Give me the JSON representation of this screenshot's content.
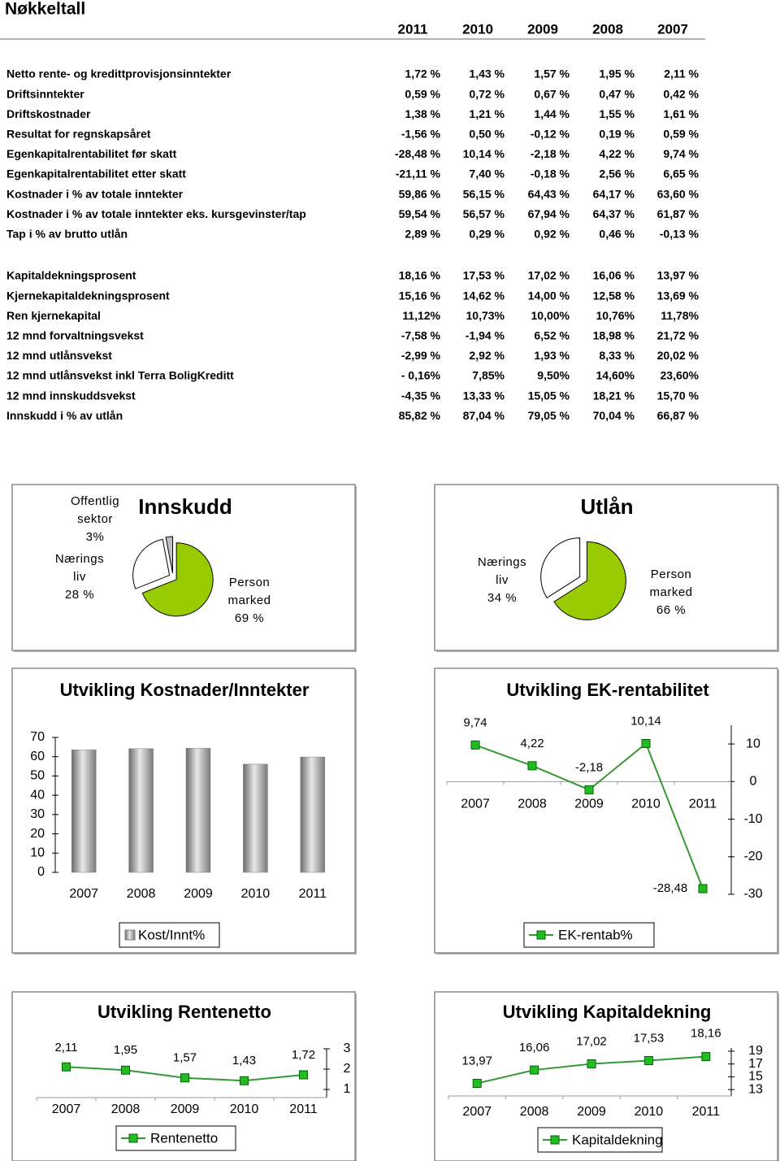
{
  "header": {
    "title": "Nøkkeltall",
    "years": [
      "2011",
      "2010",
      "2009",
      "2008",
      "2007"
    ]
  },
  "table1": {
    "rows": [
      {
        "label": "Netto rente- og kredittprovisjonsinntekter",
        "cells": [
          "1,72 %",
          "1,43 %",
          "1,57 %",
          "1,95 %",
          "2,11 %"
        ]
      },
      {
        "label": "Driftsinntekter",
        "cells": [
          "0,59 %",
          "0,72 %",
          "0,67 %",
          "0,47 %",
          "0,42 %"
        ]
      },
      {
        "label": "Driftskostnader",
        "cells": [
          "1,38 %",
          "1,21 %",
          "1,44 %",
          "1,55 %",
          "1,61 %"
        ]
      },
      {
        "label": "Resultat for regnskapsåret",
        "cells": [
          "-1,56 %",
          "0,50 %",
          "-0,12 %",
          "0,19 %",
          "0,59 %"
        ]
      },
      {
        "label": "Egenkapitalrentabilitet før skatt",
        "cells": [
          "-28,48 %",
          "10,14 %",
          "-2,18 %",
          "4,22 %",
          "9,74 %"
        ]
      },
      {
        "label": "Egenkapitalrentabilitet etter skatt",
        "cells": [
          "-21,11 %",
          "7,40 %",
          "-0,18 %",
          "2,56 %",
          "6,65 %"
        ]
      },
      {
        "label": "Kostnader i % av totale inntekter",
        "cells": [
          "59,86 %",
          "56,15 %",
          "64,43 %",
          "64,17 %",
          "63,60 %"
        ]
      },
      {
        "label": "Kostnader i % av totale inntekter eks. kursgevinster/tap",
        "cells": [
          "59,54 %",
          "56,57 %",
          "67,94 %",
          "64,37 %",
          "61,87 %"
        ]
      },
      {
        "label": "Tap i % av brutto utlån",
        "cells": [
          "2,89 %",
          "0,29 %",
          "0,92 %",
          "0,46 %",
          "-0,13 %"
        ]
      }
    ]
  },
  "table2": {
    "rows": [
      {
        "label": "Kapitaldekningsprosent",
        "cells": [
          "18,16 %",
          "17,53 %",
          "17,02 %",
          "16,06 %",
          "13,97 %"
        ]
      },
      {
        "label": "Kjernekapitaldekningsprosent",
        "cells": [
          "15,16 %",
          "14,62 %",
          "14,00 %",
          "12,58 %",
          "13,69 %"
        ]
      },
      {
        "label": "Ren kjernekapital",
        "cells": [
          "11,12%",
          "10,73%",
          "10,00%",
          "10,76%",
          "11,78%"
        ]
      },
      {
        "label": "12 mnd forvaltningsvekst",
        "cells": [
          "-7,58 %",
          "-1,94 %",
          "6,52 %",
          "18,98 %",
          "21,72 %"
        ]
      },
      {
        "label": "12 mnd utlånsvekst",
        "cells": [
          "-2,99 %",
          "2,92 %",
          "1,93 %",
          "8,33 %",
          "20,02 %"
        ]
      },
      {
        "label": "12 mnd utlånsvekst inkl Terra BoligKreditt",
        "cells": [
          "- 0,16%",
          "7,85%",
          "9,50%",
          "14,60%",
          "23,60%"
        ]
      },
      {
        "label": "12 mnd innskuddsvekst",
        "cells": [
          "-4,35 %",
          "13,33 %",
          "15,05 %",
          "18,21 %",
          "15,70 %"
        ]
      },
      {
        "label": "Innskudd  i % av utlån",
        "cells": [
          "85,82 %",
          "87,04 %",
          "79,05 %",
          "70,04 %",
          "66,87 %"
        ]
      }
    ]
  },
  "chart_data": [
    {
      "type": "pie",
      "title": "Innskudd",
      "categories": [
        "Person marked",
        "Nærings liv",
        "Offentlig sektor"
      ],
      "values": [
        69,
        28,
        3
      ],
      "value_labels": [
        "69 %",
        "28 %",
        "3%"
      ],
      "colors": [
        "#99cc00",
        "#ffffff",
        "#c0c0c0"
      ]
    },
    {
      "type": "pie",
      "title": "Utlån",
      "categories": [
        "Person marked",
        "Nærings liv"
      ],
      "values": [
        66,
        34
      ],
      "value_labels": [
        "66 %",
        "34 %"
      ],
      "colors": [
        "#99cc00",
        "#ffffff"
      ]
    },
    {
      "type": "bar",
      "title": "Utvikling Kostnader/Inntekter",
      "categories": [
        "2007",
        "2008",
        "2009",
        "2010",
        "2011"
      ],
      "series": [
        {
          "name": "Kost/Innt%",
          "color": "#808080",
          "values": [
            63.6,
            64.17,
            64.43,
            56.15,
            59.86
          ]
        }
      ],
      "ylim": [
        0,
        70
      ],
      "yticks": [
        0,
        10,
        20,
        30,
        40,
        50,
        60,
        70
      ],
      "y_axis_side": "left",
      "legend": "bottom"
    },
    {
      "type": "line",
      "title": "Utvikling EK-rentabilitet",
      "categories": [
        "2007",
        "2008",
        "2009",
        "2010",
        "2011"
      ],
      "series": [
        {
          "name": "EK-rentab%",
          "color": "#339933",
          "values": [
            9.74,
            4.22,
            -2.18,
            10.14,
            -28.48
          ],
          "value_labels": [
            "9,74",
            "4,22",
            "-2,18",
            "10,14",
            "-28,48"
          ]
        }
      ],
      "ylim": [
        -30,
        15
      ],
      "yticks": [
        -30,
        -20,
        -10,
        0,
        10
      ],
      "y_axis_side": "right",
      "legend": "bottom"
    },
    {
      "type": "line",
      "title": "Utvikling Rentenetto",
      "categories": [
        "2007",
        "2008",
        "2009",
        "2010",
        "2011"
      ],
      "series": [
        {
          "name": "Rentenetto",
          "color": "#339933",
          "values": [
            2.11,
            1.95,
            1.57,
            1.43,
            1.72
          ],
          "value_labels": [
            "2,11",
            "1,95",
            "1,57",
            "1,43",
            "1,72"
          ]
        }
      ],
      "ylim": [
        0.6,
        3
      ],
      "yticks": [
        1,
        2,
        3
      ],
      "y_axis_side": "right",
      "legend": "bottom"
    },
    {
      "type": "line",
      "title": "Utvikling Kapitaldekning",
      "categories": [
        "2007",
        "2008",
        "2009",
        "2010",
        "2011"
      ],
      "series": [
        {
          "name": "Kapitaldekning",
          "color": "#339933",
          "values": [
            13.97,
            16.06,
            17.02,
            17.53,
            18.16
          ],
          "value_labels": [
            "13,97",
            "16,06",
            "17,02",
            "17,53",
            "18,16"
          ]
        }
      ],
      "ylim": [
        12,
        19.5
      ],
      "yticks": [
        13,
        15,
        17,
        19
      ],
      "y_axis_side": "right",
      "legend": "bottom"
    }
  ]
}
